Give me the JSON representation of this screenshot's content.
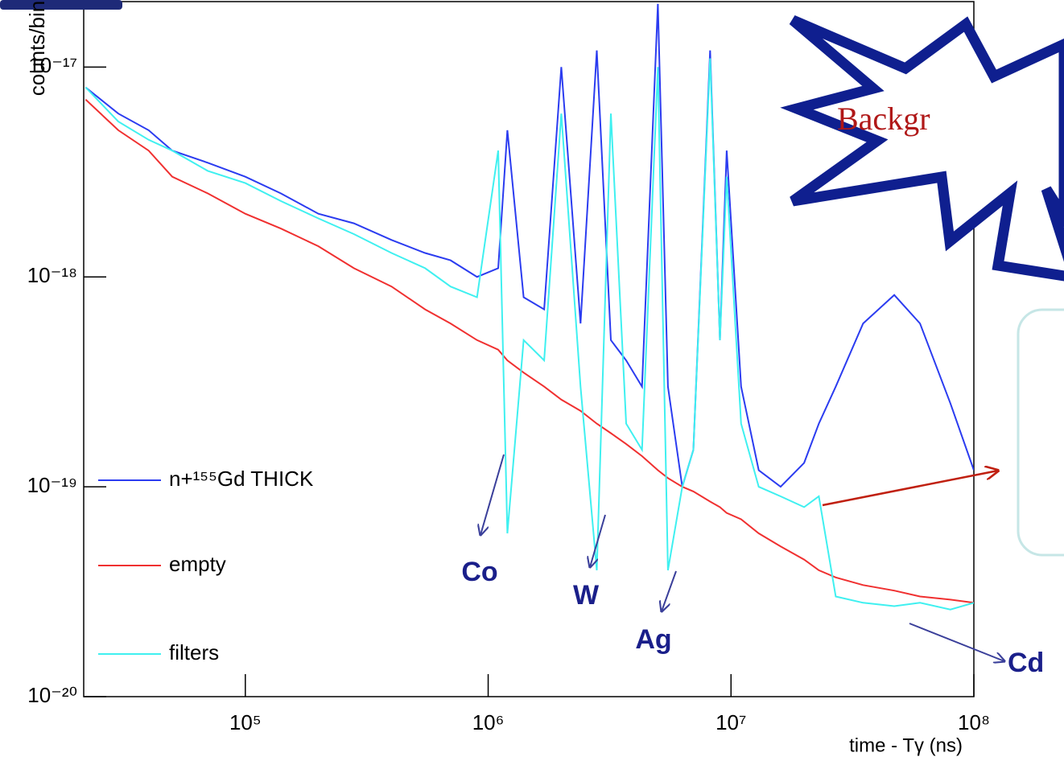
{
  "chart_data": {
    "type": "line",
    "log_x": true,
    "log_y": true,
    "xlabel": "time - Tγ (ns)",
    "ylabel": "counts/bin",
    "xlim": [
      21600,
      100000000
    ],
    "ylim": [
      1e-20,
      2.05e-17
    ],
    "xticks": [
      {
        "value": 100000,
        "label": "10⁵"
      },
      {
        "value": 1000000,
        "label": "10⁶"
      },
      {
        "value": 10000000,
        "label": "10⁷"
      },
      {
        "value": 100000000,
        "label": "10⁸"
      }
    ],
    "yticks": [
      {
        "value": 1e-20,
        "label": "10⁻²⁰"
      },
      {
        "value": 1e-19,
        "label": "10⁻¹⁹"
      },
      {
        "value": 1e-18,
        "label": "10⁻¹⁸"
      },
      {
        "value": 1e-17,
        "label": "10⁻¹⁷"
      }
    ],
    "x": [
      22000,
      30000,
      40000,
      50000,
      70000,
      100000,
      140000,
      200000,
      280000,
      400000,
      550000,
      700000,
      900000,
      1100000,
      1200000,
      1400000,
      1700000,
      2000000,
      2400000,
      2800000,
      3200000,
      3700000,
      4300000,
      5000000,
      5500000,
      6300000,
      7000000,
      8200000,
      9000000,
      9600000,
      11000000,
      13000000,
      16000000,
      20000000,
      23000000,
      27000000,
      35000000,
      47000000,
      60000000,
      80000000,
      100000000
    ],
    "series": [
      {
        "name": "n+¹⁵⁵Gd THICK",
        "color": "#2b3cf0",
        "values": [
          8e-18,
          6e-18,
          5e-18,
          4e-18,
          3.5e-18,
          3e-18,
          2.5e-18,
          2e-18,
          1.8e-18,
          1.5e-18,
          1.3e-18,
          1.2e-18,
          1e-18,
          1.1e-18,
          5e-18,
          8e-19,
          7e-19,
          1e-17,
          6e-19,
          1.2e-17,
          5e-19,
          4e-19,
          3e-19,
          2e-17,
          3e-19,
          1e-19,
          1.5e-19,
          1.2e-17,
          5e-19,
          4e-18,
          3e-19,
          1.2e-19,
          1e-19,
          1.3e-19,
          2e-19,
          3e-19,
          6e-19,
          8.2e-19,
          6e-19,
          2.5e-19,
          1.2e-19
        ]
      },
      {
        "name": "empty",
        "color": "#f03030",
        "values": [
          7e-18,
          5e-18,
          4e-18,
          3e-18,
          2.5e-18,
          2e-18,
          1.7e-18,
          1.4e-18,
          1.1e-18,
          9e-19,
          7e-19,
          6e-19,
          5e-19,
          4.5e-19,
          4e-19,
          3.5e-19,
          3e-19,
          2.6e-19,
          2.3e-19,
          2e-19,
          1.8e-19,
          1.6e-19,
          1.4e-19,
          1.2e-19,
          1.1e-19,
          1e-19,
          9.5e-20,
          8.5e-20,
          8e-20,
          7.5e-20,
          7e-20,
          6e-20,
          5.2e-20,
          4.5e-20,
          4e-20,
          3.7e-20,
          3.4e-20,
          3.2e-20,
          3e-20,
          2.9e-20,
          2.8e-20
        ]
      },
      {
        "name": "filters",
        "color": "#3ff0f0",
        "values": [
          8e-18,
          5.5e-18,
          4.5e-18,
          4e-18,
          3.2e-18,
          2.8e-18,
          2.3e-18,
          1.9e-18,
          1.6e-18,
          1.3e-18,
          1.1e-18,
          9e-19,
          8e-19,
          4e-18,
          6e-20,
          5e-19,
          4e-19,
          6e-18,
          3e-19,
          4e-20,
          6e-18,
          2e-19,
          1.5e-19,
          1e-17,
          4e-20,
          1e-19,
          1.5e-19,
          1.1e-17,
          5e-19,
          3e-18,
          2e-19,
          1e-19,
          9e-20,
          8e-20,
          9e-20,
          3e-20,
          2.8e-20,
          2.7e-20,
          2.8e-20,
          2.6e-20,
          2.8e-20
        ]
      }
    ],
    "annotations": [
      "Co",
      "W",
      "Ag",
      "Cd",
      "Backgr"
    ]
  }
}
